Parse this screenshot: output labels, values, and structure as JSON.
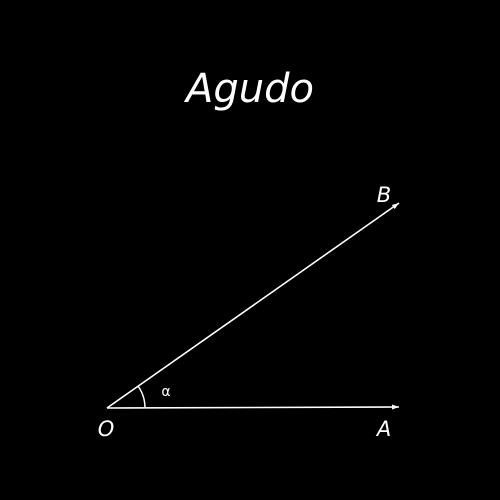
{
  "title": "Agudo",
  "diagram": {
    "vertex_label": "O",
    "ray_a_label": "A",
    "ray_b_label": "B",
    "angle_label": "α",
    "stroke_color": "#ffffff",
    "background_color": "#000000"
  }
}
